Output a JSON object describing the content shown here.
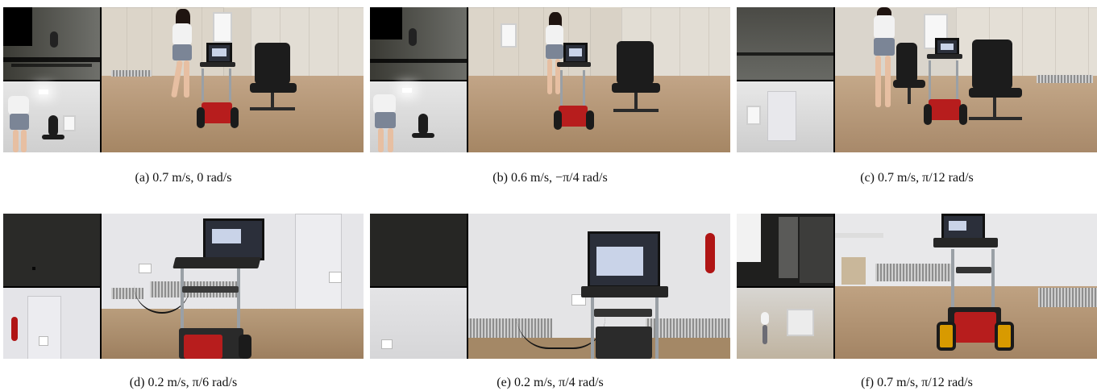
{
  "panels": [
    {
      "caption": "(a) 0.7 m/s, 0 rad/s"
    },
    {
      "caption": "(b) 0.6 m/s, −π/4 rad/s"
    },
    {
      "caption": "(c) 0.7 m/s, π/12 rad/s"
    },
    {
      "caption": "(d) 0.2 m/s, π/6 rad/s"
    },
    {
      "caption": "(e) 0.2 m/s, π/4 rad/s"
    },
    {
      "caption": "(f) 0.7 m/s, π/12 rad/s"
    }
  ],
  "colors": {
    "robot_red": "#b71d1d",
    "floor_wood": "#b89a78",
    "wall_grey": "#e9e9ec",
    "depth_grey": "#6e6e6c"
  }
}
